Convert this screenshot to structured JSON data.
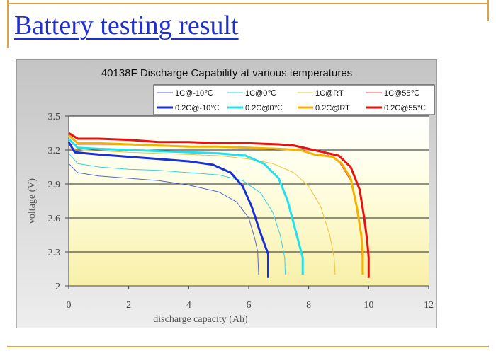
{
  "slide": {
    "title": "Battery testing result"
  },
  "chart_data": {
    "type": "line",
    "title": "40138F Discharge Capability at various temperatures",
    "xlabel": "discharge capacity (Ah)",
    "ylabel": "voltage (V)",
    "xlim": [
      0,
      12
    ],
    "ylim": [
      2,
      3.5
    ],
    "x_ticks": [
      "0",
      "2",
      "4",
      "6",
      "8",
      "10",
      "12"
    ],
    "y_ticks": [
      "2",
      "2.3",
      "2.6",
      "2.9",
      "3.2",
      "3.5"
    ],
    "grid": "horizontal",
    "legend_position": "top",
    "series": [
      {
        "name": "1C@-10℃",
        "color": "#5566cc",
        "weight": "thin",
        "points": [
          [
            0,
            3.08
          ],
          [
            0.3,
            3.0
          ],
          [
            1,
            2.97
          ],
          [
            2,
            2.95
          ],
          [
            3,
            2.93
          ],
          [
            4,
            2.89
          ],
          [
            5,
            2.83
          ],
          [
            5.6,
            2.74
          ],
          [
            6.0,
            2.6
          ],
          [
            6.2,
            2.42
          ],
          [
            6.3,
            2.3
          ],
          [
            6.33,
            2.1
          ]
        ]
      },
      {
        "name": "1C@0℃",
        "color": "#33d4dd",
        "weight": "thin",
        "points": [
          [
            0,
            3.17
          ],
          [
            0.3,
            3.08
          ],
          [
            1,
            3.05
          ],
          [
            2,
            3.03
          ],
          [
            3,
            3.02
          ],
          [
            4,
            3.0
          ],
          [
            5,
            2.98
          ],
          [
            5.8,
            2.93
          ],
          [
            6.4,
            2.82
          ],
          [
            6.8,
            2.65
          ],
          [
            7.05,
            2.45
          ],
          [
            7.2,
            2.25
          ],
          [
            7.22,
            2.1
          ]
        ]
      },
      {
        "name": "1C@RT",
        "color": "#f0c040",
        "weight": "thin",
        "points": [
          [
            0,
            3.22
          ],
          [
            0.5,
            3.2
          ],
          [
            2,
            3.18
          ],
          [
            4,
            3.16
          ],
          [
            5,
            3.15
          ],
          [
            6,
            3.12
          ],
          [
            6.8,
            3.08
          ],
          [
            7.5,
            3.0
          ],
          [
            8.0,
            2.88
          ],
          [
            8.4,
            2.7
          ],
          [
            8.7,
            2.45
          ],
          [
            8.85,
            2.25
          ],
          [
            8.88,
            2.1
          ]
        ]
      },
      {
        "name": "1C@55℃",
        "color": "#e05050",
        "weight": "thin",
        "points": [
          [
            0,
            3.25
          ],
          [
            1,
            3.25
          ],
          [
            3,
            3.24
          ],
          [
            5,
            3.23
          ],
          [
            6,
            3.22
          ],
          [
            7,
            3.21
          ],
          [
            8,
            3.2
          ],
          [
            8.5,
            3.18
          ],
          [
            9.0,
            3.1
          ],
          [
            9.4,
            2.93
          ],
          [
            9.6,
            2.7
          ],
          [
            9.75,
            2.45
          ],
          [
            9.8,
            2.1
          ]
        ]
      },
      {
        "name": "0.2C@-10℃",
        "color": "#1a2fd8",
        "weight": "thick",
        "points": [
          [
            0,
            3.27
          ],
          [
            0.2,
            3.18
          ],
          [
            1,
            3.16
          ],
          [
            2,
            3.14
          ],
          [
            3,
            3.12
          ],
          [
            4,
            3.1
          ],
          [
            4.8,
            3.07
          ],
          [
            5.4,
            3.0
          ],
          [
            5.8,
            2.88
          ],
          [
            6.1,
            2.7
          ],
          [
            6.35,
            2.5
          ],
          [
            6.55,
            2.35
          ],
          [
            6.65,
            2.28
          ],
          [
            6.65,
            2.07
          ]
        ]
      },
      {
        "name": "0.2C@0℃",
        "color": "#22e0ee",
        "weight": "thick",
        "points": [
          [
            0,
            3.3
          ],
          [
            0.3,
            3.22
          ],
          [
            1,
            3.21
          ],
          [
            2,
            3.2
          ],
          [
            3,
            3.19
          ],
          [
            4,
            3.18
          ],
          [
            5,
            3.17
          ],
          [
            5.9,
            3.15
          ],
          [
            6.5,
            3.08
          ],
          [
            7.0,
            2.95
          ],
          [
            7.3,
            2.75
          ],
          [
            7.55,
            2.5
          ],
          [
            7.75,
            2.3
          ],
          [
            7.8,
            2.25
          ],
          [
            7.8,
            2.1
          ]
        ]
      },
      {
        "name": "0.2C@RT",
        "color": "#f5b000",
        "weight": "thick",
        "points": [
          [
            0,
            3.33
          ],
          [
            0.3,
            3.26
          ],
          [
            1,
            3.26
          ],
          [
            2,
            3.25
          ],
          [
            3,
            3.24
          ],
          [
            4,
            3.23
          ],
          [
            5,
            3.23
          ],
          [
            6,
            3.22
          ],
          [
            7,
            3.21
          ],
          [
            7.7,
            3.2
          ],
          [
            8.2,
            3.16
          ],
          [
            8.8,
            3.14
          ],
          [
            9.1,
            3.08
          ],
          [
            9.4,
            2.95
          ],
          [
            9.6,
            2.7
          ],
          [
            9.75,
            2.45
          ],
          [
            9.8,
            2.3
          ],
          [
            9.8,
            2.1
          ]
        ]
      },
      {
        "name": "0.2C@55℃",
        "color": "#e81010",
        "weight": "thick",
        "points": [
          [
            0,
            3.35
          ],
          [
            0.3,
            3.3
          ],
          [
            1,
            3.3
          ],
          [
            2,
            3.29
          ],
          [
            3,
            3.27
          ],
          [
            4,
            3.27
          ],
          [
            5,
            3.26
          ],
          [
            6,
            3.26
          ],
          [
            7,
            3.25
          ],
          [
            7.5,
            3.24
          ],
          [
            8,
            3.21
          ],
          [
            8.5,
            3.18
          ],
          [
            9.0,
            3.15
          ],
          [
            9.4,
            3.05
          ],
          [
            9.7,
            2.85
          ],
          [
            9.85,
            2.6
          ],
          [
            9.95,
            2.4
          ],
          [
            10.0,
            2.25
          ],
          [
            10.0,
            2.07
          ]
        ]
      }
    ]
  }
}
